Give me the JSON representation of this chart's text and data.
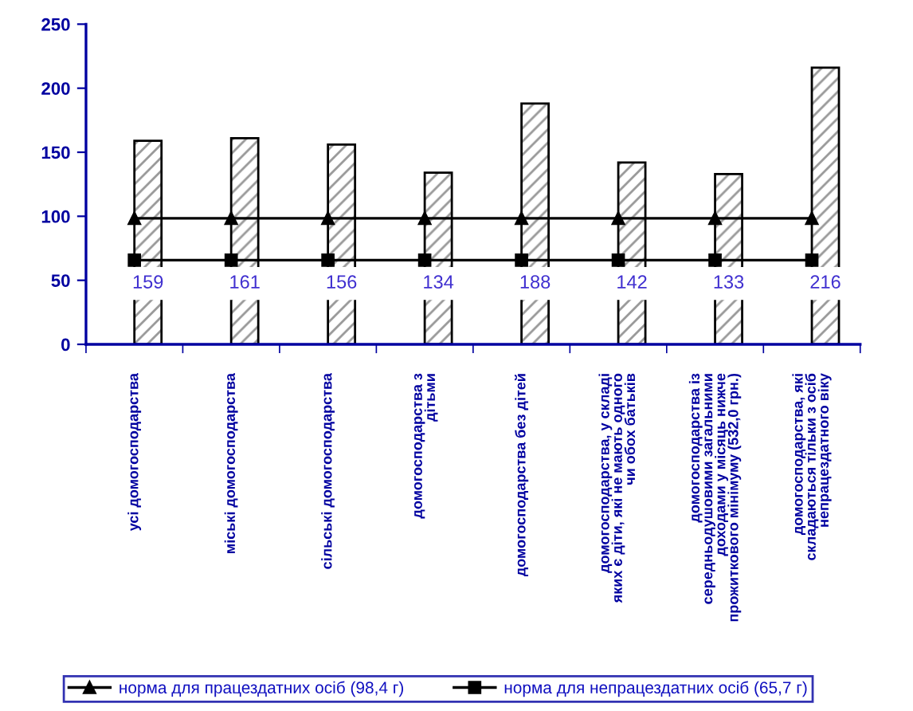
{
  "chart_data": {
    "type": "bar",
    "ylim": [
      0,
      250
    ],
    "yticks": [
      0,
      50,
      100,
      150,
      200,
      250
    ],
    "grid": false,
    "legend": "bottom",
    "categories": [
      "усі домогосподарства",
      "міські домогосподарства",
      "сільські домогосподарства",
      "домогосподарства з\nдітьми",
      "домогосподарства без дітей",
      "домогосподарства, у складі\nяких є діти, які не мають одного\nчи обох батьків",
      "домогосподарства із\nсередньодушовими загальними\nдоходами у місяць нижче\nпрожиткового мінімуму (532,0 грн.)",
      "домогосподарства, які\nскладаються тільки з осіб\nнепрацездатного віку"
    ],
    "series": [
      {
        "color": "#000000",
        "values": [
          159,
          161,
          156,
          134,
          188,
          142,
          133,
          216
        ],
        "value_labels": [
          "159",
          "161",
          "156",
          "134",
          "188",
          "142",
          "133",
          "216"
        ]
      },
      {
        "type": "line",
        "name": "норма для працездатних осіб (98,4 г)",
        "color": "#000000",
        "marker": "triangle",
        "line_style": "solid",
        "values": [
          98.4,
          98.4,
          98.4,
          98.4,
          98.4,
          98.4,
          98.4,
          98.4
        ]
      },
      {
        "type": "line",
        "name": "норма для непрацездатних осіб (65,7 г)",
        "color": "#000000",
        "marker": "square",
        "line_style": "solid",
        "values": [
          65.7,
          65.7,
          65.7,
          65.7,
          65.7,
          65.7,
          65.7,
          65.7
        ]
      }
    ]
  }
}
